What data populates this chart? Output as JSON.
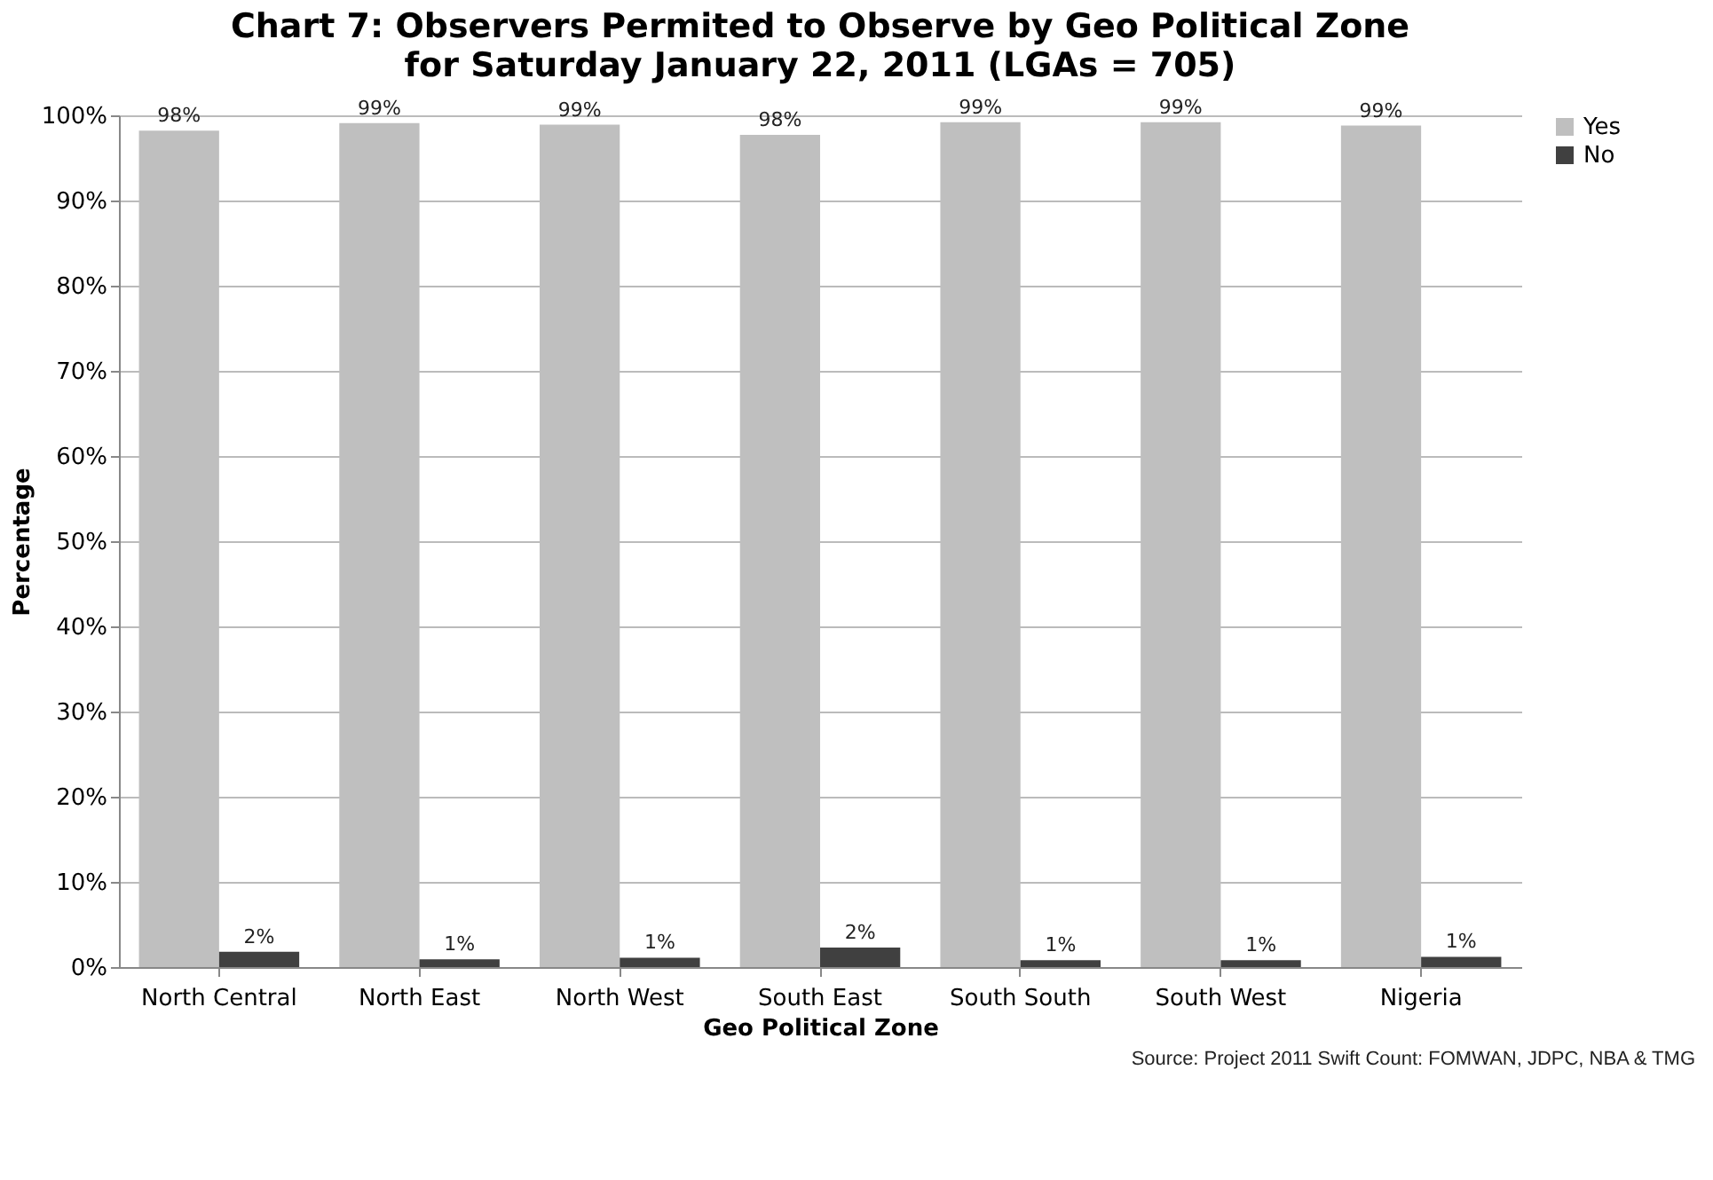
{
  "chart_data": {
    "type": "bar",
    "title": "Chart 7: Observers Permited to Observe by Geo Political Zone",
    "subtitle": "for Saturday January 22, 2011 (LGAs = 705)",
    "xlabel": "Geo Political Zone",
    "ylabel": "Percentage",
    "categories": [
      "North Central",
      "North East",
      "North West",
      "South East",
      "South South",
      "South West",
      "Nigeria"
    ],
    "series": [
      {
        "name": "Yes",
        "color": "#bfbfbf",
        "values": [
          98.2,
          99.1,
          98.9,
          97.7,
          99.2,
          99.2,
          98.8
        ],
        "value_labels": [
          "98%",
          "99%",
          "99%",
          "98%",
          "99%",
          "99%",
          "99%"
        ]
      },
      {
        "name": "No",
        "color": "#404040",
        "values": [
          1.8,
          0.9,
          1.1,
          2.3,
          0.8,
          0.8,
          1.2
        ],
        "value_labels": [
          "2%",
          "1%",
          "1%",
          "2%",
          "1%",
          "1%",
          "1%"
        ]
      }
    ],
    "ylim": [
      0,
      100
    ],
    "yticks": [
      {
        "value": 0,
        "label": "0%"
      },
      {
        "value": 10,
        "label": "10%"
      },
      {
        "value": 20,
        "label": "20%"
      },
      {
        "value": 30,
        "label": "30%"
      },
      {
        "value": 40,
        "label": "40%"
      },
      {
        "value": 50,
        "label": "50%"
      },
      {
        "value": 60,
        "label": "60%"
      },
      {
        "value": 70,
        "label": "70%"
      },
      {
        "value": 80,
        "label": "80%"
      },
      {
        "value": 90,
        "label": "90%"
      },
      {
        "value": 100,
        "label": "100%"
      }
    ],
    "grid": "y",
    "legend": "right",
    "annotations": [
      "Source: Project 2011 Swift Count: FOMWAN, JDPC, NBA & TMG"
    ]
  }
}
